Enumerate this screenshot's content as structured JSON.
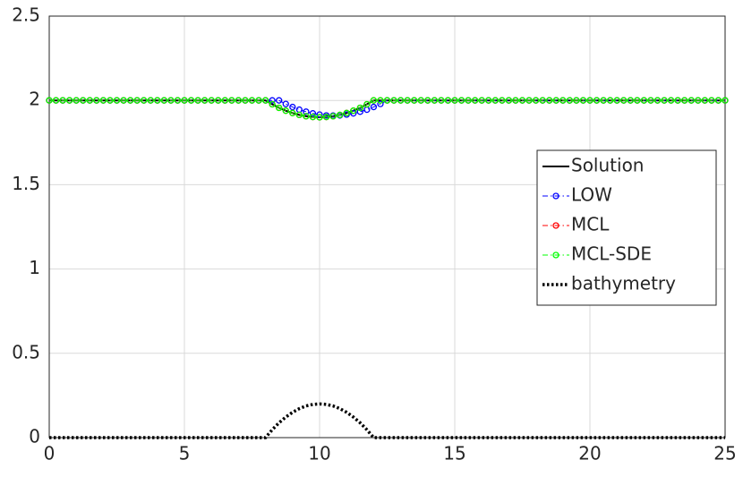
{
  "chart_data": {
    "type": "line",
    "x": [
      0,
      0.25,
      0.5,
      0.75,
      1,
      1.25,
      1.5,
      1.75,
      2,
      2.25,
      2.5,
      2.75,
      3,
      3.25,
      3.5,
      3.75,
      4,
      4.25,
      4.5,
      4.75,
      5,
      5.25,
      5.5,
      5.75,
      6,
      6.25,
      6.5,
      6.75,
      7,
      7.25,
      7.5,
      7.75,
      8,
      8.25,
      8.5,
      8.75,
      9,
      9.25,
      9.5,
      9.75,
      10,
      10.25,
      10.5,
      10.75,
      11,
      11.25,
      11.5,
      11.75,
      12,
      12.25,
      12.5,
      12.75,
      13,
      13.25,
      13.5,
      13.75,
      14,
      14.25,
      14.5,
      14.75,
      15,
      15.25,
      15.5,
      15.75,
      16,
      16.25,
      16.5,
      16.75,
      17,
      17.25,
      17.5,
      17.75,
      18,
      18.25,
      18.5,
      18.75,
      19,
      19.25,
      19.5,
      19.75,
      20,
      20.25,
      20.5,
      20.75,
      21,
      21.25,
      21.5,
      21.75,
      22,
      22.25,
      22.5,
      22.75,
      23,
      23.25,
      23.5,
      23.75,
      24,
      24.25,
      24.5,
      24.75,
      25
    ],
    "series": [
      {
        "name": "Solution",
        "color": "#000000",
        "linestyle": "solid",
        "marker": "none",
        "values": [
          2,
          2,
          2,
          2,
          2,
          2,
          2,
          2,
          2,
          2,
          2,
          2,
          2,
          2,
          2,
          2,
          2,
          2,
          2,
          2,
          2,
          2,
          2,
          2,
          2,
          2,
          2,
          2,
          2,
          2,
          2,
          2,
          2,
          1.977,
          1.956,
          1.939,
          1.925,
          1.914,
          1.906,
          1.902,
          1.9,
          1.902,
          1.906,
          1.914,
          1.925,
          1.939,
          1.956,
          1.977,
          2,
          2,
          2,
          2,
          2,
          2,
          2,
          2,
          2,
          2,
          2,
          2,
          2,
          2,
          2,
          2,
          2,
          2,
          2,
          2,
          2,
          2,
          2,
          2,
          2,
          2,
          2,
          2,
          2,
          2,
          2,
          2,
          2,
          2,
          2,
          2,
          2,
          2,
          2,
          2,
          2,
          2,
          2,
          2,
          2,
          2,
          2,
          2,
          2,
          2,
          2,
          2,
          2
        ]
      },
      {
        "name": "LOW",
        "color": "#0000ff",
        "linestyle": "dashdot",
        "marker": "o",
        "values": [
          2,
          2,
          2,
          2,
          2,
          2,
          2,
          2,
          2,
          2,
          2,
          2,
          2,
          2,
          2,
          2,
          2,
          2,
          2,
          2,
          2,
          2,
          2,
          2,
          2,
          2,
          2,
          2,
          2,
          2,
          2,
          2,
          2,
          2,
          2,
          1.979,
          1.961,
          1.945,
          1.933,
          1.923,
          1.916,
          1.911,
          1.91,
          1.911,
          1.916,
          1.923,
          1.933,
          1.945,
          1.961,
          1.979,
          2,
          2,
          2,
          2,
          2,
          2,
          2,
          2,
          2,
          2,
          2,
          2,
          2,
          2,
          2,
          2,
          2,
          2,
          2,
          2,
          2,
          2,
          2,
          2,
          2,
          2,
          2,
          2,
          2,
          2,
          2,
          2,
          2,
          2,
          2,
          2,
          2,
          2,
          2,
          2,
          2,
          2,
          2,
          2,
          2,
          2,
          2,
          2,
          2,
          2,
          2
        ]
      },
      {
        "name": "MCL",
        "color": "#ff0000",
        "linestyle": "dashdot",
        "marker": "o",
        "values": [
          2,
          2,
          2,
          2,
          2,
          2,
          2,
          2,
          2,
          2,
          2,
          2,
          2,
          2,
          2,
          2,
          2,
          2,
          2,
          2,
          2,
          2,
          2,
          2,
          2,
          2,
          2,
          2,
          2,
          2,
          2,
          2,
          2,
          1.977,
          1.956,
          1.939,
          1.925,
          1.914,
          1.906,
          1.902,
          1.9,
          1.902,
          1.906,
          1.914,
          1.925,
          1.939,
          1.956,
          1.977,
          2,
          2,
          2,
          2,
          2,
          2,
          2,
          2,
          2,
          2,
          2,
          2,
          2,
          2,
          2,
          2,
          2,
          2,
          2,
          2,
          2,
          2,
          2,
          2,
          2,
          2,
          2,
          2,
          2,
          2,
          2,
          2,
          2,
          2,
          2,
          2,
          2,
          2,
          2,
          2,
          2,
          2,
          2,
          2,
          2,
          2,
          2,
          2,
          2,
          2,
          2,
          2,
          2
        ]
      },
      {
        "name": "MCL-SDE",
        "color": "#00ff00",
        "linestyle": "dashdot",
        "marker": "o",
        "values": [
          2,
          2,
          2,
          2,
          2,
          2,
          2,
          2,
          2,
          2,
          2,
          2,
          2,
          2,
          2,
          2,
          2,
          2,
          2,
          2,
          2,
          2,
          2,
          2,
          2,
          2,
          2,
          2,
          2,
          2,
          2,
          2,
          2,
          1.977,
          1.956,
          1.939,
          1.925,
          1.914,
          1.906,
          1.902,
          1.9,
          1.902,
          1.906,
          1.914,
          1.925,
          1.939,
          1.956,
          1.977,
          2,
          2,
          2,
          2,
          2,
          2,
          2,
          2,
          2,
          2,
          2,
          2,
          2,
          2,
          2,
          2,
          2,
          2,
          2,
          2,
          2,
          2,
          2,
          2,
          2,
          2,
          2,
          2,
          2,
          2,
          2,
          2,
          2,
          2,
          2,
          2,
          2,
          2,
          2,
          2,
          2,
          2,
          2,
          2,
          2,
          2,
          2,
          2,
          2,
          2,
          2,
          2,
          2
        ]
      },
      {
        "name": "bathymetry",
        "color": "#000000",
        "linestyle": "dotted",
        "marker": "none",
        "values": [
          0,
          0,
          0,
          0,
          0,
          0,
          0,
          0,
          0,
          0,
          0,
          0,
          0,
          0,
          0,
          0,
          0,
          0,
          0,
          0,
          0,
          0,
          0,
          0,
          0,
          0,
          0,
          0,
          0,
          0,
          0,
          0,
          0,
          0.047,
          0.088,
          0.122,
          0.15,
          0.172,
          0.188,
          0.197,
          0.2,
          0.197,
          0.188,
          0.172,
          0.15,
          0.122,
          0.088,
          0.047,
          0,
          0,
          0,
          0,
          0,
          0,
          0,
          0,
          0,
          0,
          0,
          0,
          0,
          0,
          0,
          0,
          0,
          0,
          0,
          0,
          0,
          0,
          0,
          0,
          0,
          0,
          0,
          0,
          0,
          0,
          0,
          0,
          0,
          0,
          0,
          0,
          0,
          0,
          0,
          0,
          0,
          0,
          0,
          0,
          0,
          0,
          0,
          0,
          0,
          0,
          0,
          0,
          0
        ]
      }
    ],
    "xlim": [
      0,
      25
    ],
    "xticks": [
      0,
      5,
      10,
      15,
      20,
      25
    ],
    "ylim": [
      0,
      2.5
    ],
    "yticks": [
      0,
      0.5,
      1,
      1.5,
      2,
      2.5
    ],
    "grid": true,
    "legend": "east"
  }
}
